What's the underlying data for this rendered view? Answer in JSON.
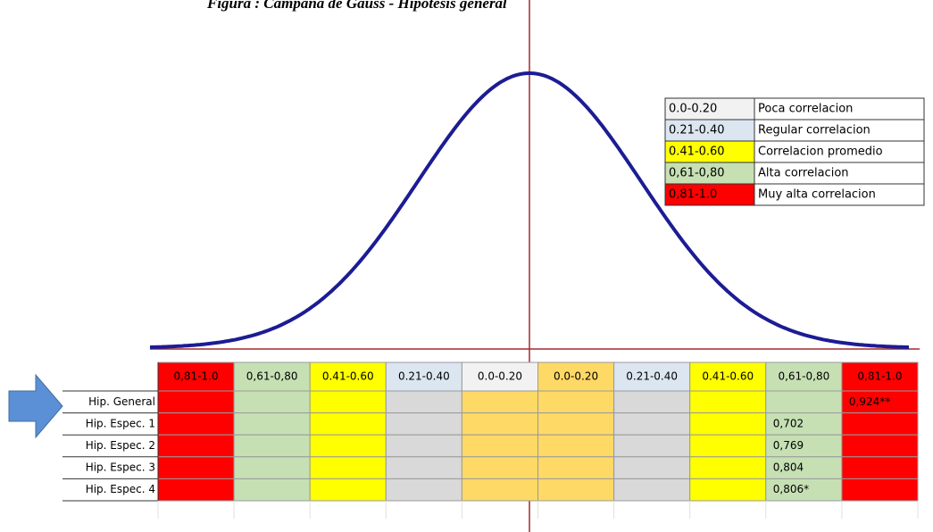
{
  "title": "Figura : Campana de Gauss - Hipotesis general",
  "legend": [
    {
      "range": "0.0-0.20",
      "label": "Poca correlacion"
    },
    {
      "range": "0.21-0.40",
      "label": "Regular correlacion"
    },
    {
      "range": "0.41-0.60",
      "label": "Correlacion promedio"
    },
    {
      "range": "0,61-0,80",
      "label": "Alta correlacion"
    },
    {
      "range": "0,81-1.0",
      "label": "Muy alta correlacion"
    }
  ],
  "table": {
    "headers": [
      "0,81-1.0",
      "0,61-0,80",
      "0.41-0.60",
      "0.21-0.40",
      "0.0-0.20",
      "0.0-0.20",
      "0.21-0.40",
      "0.41-0.60",
      "0,61-0,80",
      "0,81-1.0"
    ],
    "rows": [
      {
        "label": "Hip. General",
        "value": "0,924**"
      },
      {
        "label": "Hip. Espec. 1",
        "value": "0,702"
      },
      {
        "label": "Hip. Espec. 2",
        "value": "0,769"
      },
      {
        "label": "Hip. Espec. 3",
        "value": "0,804"
      },
      {
        "label": "Hip. Espec. 4",
        "value": "0,806*"
      }
    ]
  }
}
